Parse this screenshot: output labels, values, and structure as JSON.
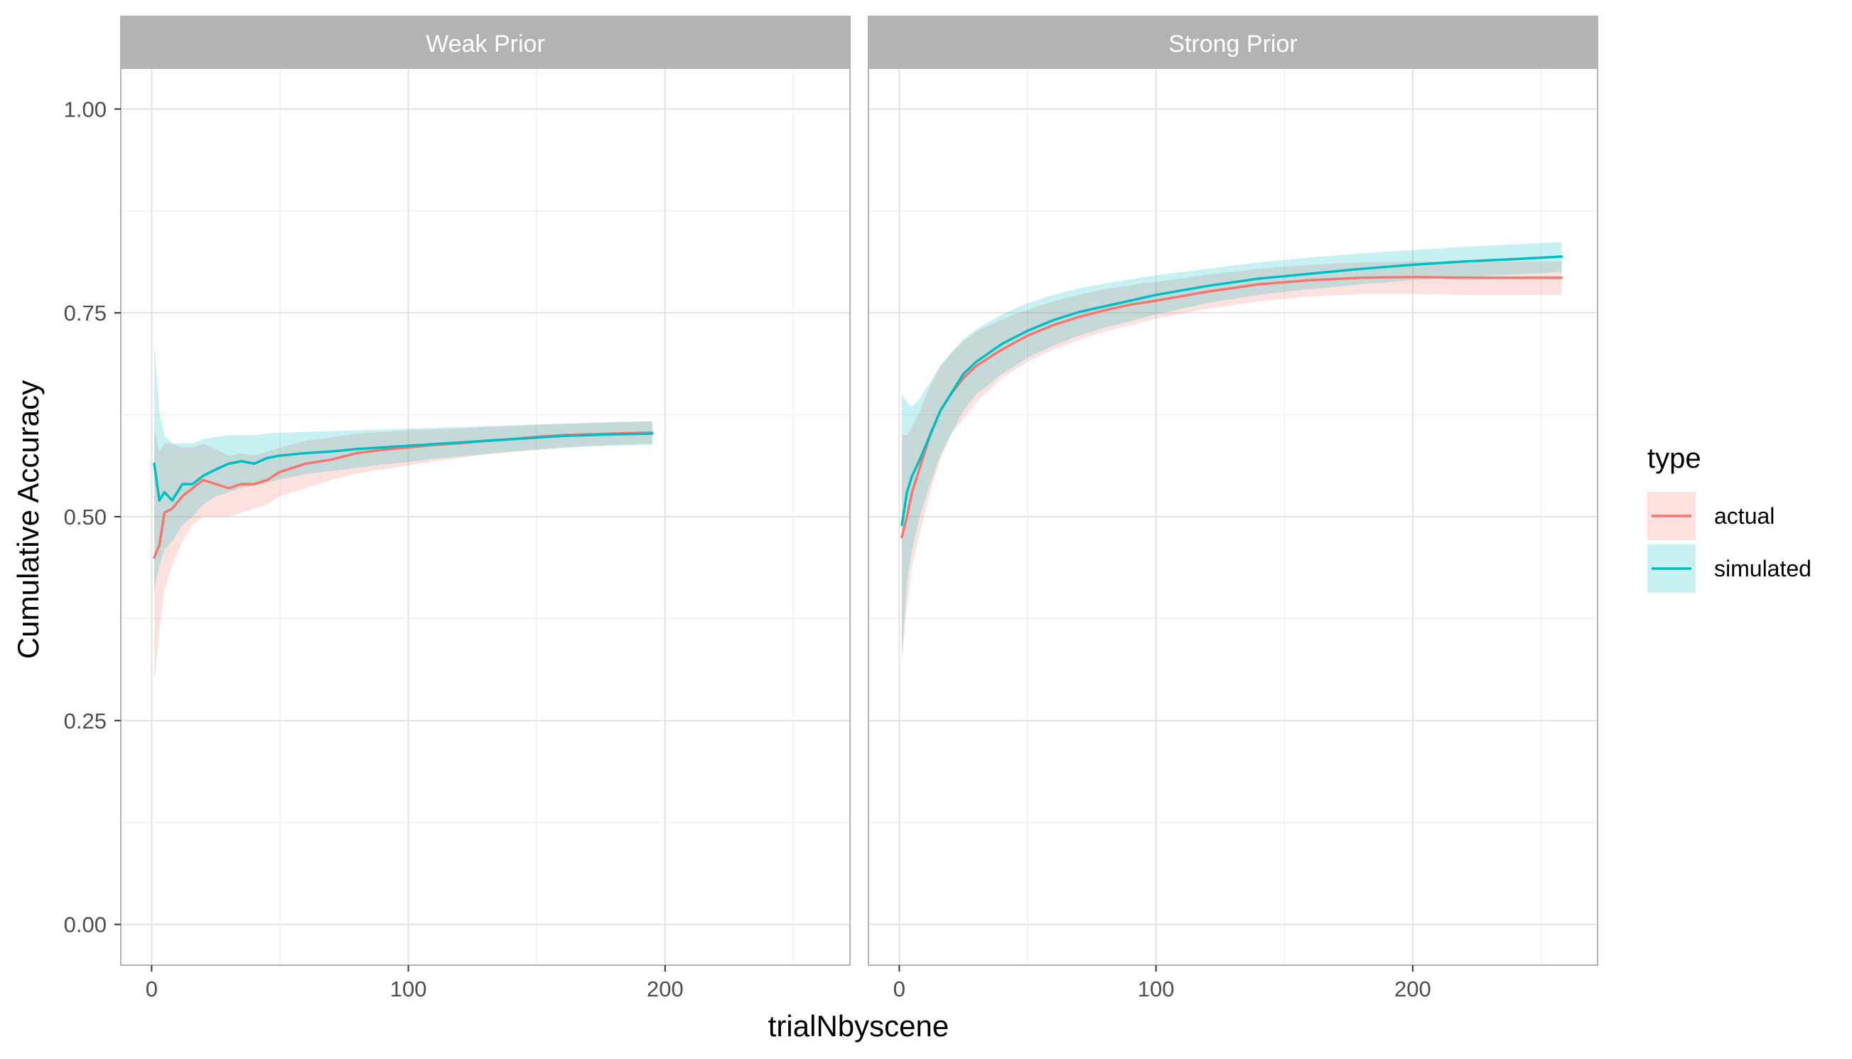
{
  "chart_data": {
    "type": "line",
    "xlabel": "trialNbyscene",
    "ylabel": "Cumulative Accuracy",
    "xlim": [
      -12,
      272
    ],
    "ylim": [
      -0.05,
      1.05
    ],
    "x_ticks": [
      0,
      100,
      200
    ],
    "y_ticks": [
      0,
      0.25,
      0.5,
      0.75,
      1.0
    ],
    "y_tick_labels": [
      "0.00",
      "0.25",
      "0.50",
      "0.75",
      "1.00"
    ],
    "grid": true,
    "legend": {
      "title": "type",
      "position": "right",
      "entries": [
        {
          "label": "actual",
          "color": "#F8766D"
        },
        {
          "label": "simulated",
          "color": "#00BFC4"
        }
      ]
    },
    "facets": [
      {
        "label": "Weak Prior",
        "series": [
          {
            "name": "actual",
            "color": "#F8766D",
            "x": [
              1,
              3,
              5,
              8,
              12,
              16,
              20,
              25,
              30,
              35,
              40,
              45,
              50,
              60,
              70,
              80,
              90,
              100,
              110,
              120,
              130,
              140,
              150,
              160,
              170,
              180,
              195
            ],
            "y": [
              0.45,
              0.465,
              0.505,
              0.51,
              0.525,
              0.535,
              0.545,
              0.54,
              0.535,
              0.54,
              0.54,
              0.545,
              0.555,
              0.565,
              0.57,
              0.578,
              0.582,
              0.585,
              0.588,
              0.59,
              0.593,
              0.595,
              0.598,
              0.6,
              0.601,
              0.602,
              0.603
            ],
            "lower": [
              0.295,
              0.36,
              0.41,
              0.44,
              0.47,
              0.49,
              0.5,
              0.5,
              0.5,
              0.505,
              0.51,
              0.515,
              0.525,
              0.535,
              0.545,
              0.553,
              0.558,
              0.563,
              0.568,
              0.572,
              0.576,
              0.579,
              0.582,
              0.585,
              0.587,
              0.588,
              0.59
            ],
            "upper": [
              0.61,
              0.58,
              0.59,
              0.59,
              0.585,
              0.585,
              0.59,
              0.583,
              0.575,
              0.578,
              0.575,
              0.58,
              0.585,
              0.593,
              0.597,
              0.602,
              0.604,
              0.606,
              0.607,
              0.608,
              0.61,
              0.611,
              0.613,
              0.614,
              0.615,
              0.616,
              0.617
            ]
          },
          {
            "name": "simulated",
            "color": "#00BFC4",
            "x": [
              1,
              3,
              5,
              8,
              12,
              16,
              20,
              25,
              30,
              35,
              40,
              45,
              50,
              60,
              70,
              80,
              90,
              100,
              110,
              120,
              130,
              140,
              150,
              160,
              170,
              180,
              195
            ],
            "y": [
              0.565,
              0.52,
              0.53,
              0.52,
              0.54,
              0.54,
              0.55,
              0.558,
              0.565,
              0.568,
              0.565,
              0.572,
              0.575,
              0.578,
              0.58,
              0.583,
              0.585,
              0.587,
              0.589,
              0.591,
              0.593,
              0.595,
              0.597,
              0.599,
              0.6,
              0.601,
              0.602
            ],
            "lower": [
              0.41,
              0.44,
              0.46,
              0.47,
              0.49,
              0.5,
              0.515,
              0.525,
              0.53,
              0.535,
              0.538,
              0.542,
              0.546,
              0.552,
              0.556,
              0.56,
              0.564,
              0.567,
              0.571,
              0.574,
              0.577,
              0.58,
              0.582,
              0.584,
              0.586,
              0.587,
              0.588
            ],
            "upper": [
              0.715,
              0.63,
              0.6,
              0.59,
              0.59,
              0.59,
              0.595,
              0.598,
              0.6,
              0.6,
              0.6,
              0.602,
              0.603,
              0.604,
              0.605,
              0.606,
              0.607,
              0.608,
              0.609,
              0.61,
              0.611,
              0.612,
              0.613,
              0.614,
              0.615,
              0.616,
              0.617
            ]
          }
        ]
      },
      {
        "label": "Strong Prior",
        "series": [
          {
            "name": "actual",
            "color": "#F8766D",
            "x": [
              1,
              3,
              5,
              8,
              12,
              16,
              20,
              25,
              30,
              40,
              50,
              60,
              70,
              80,
              90,
              100,
              120,
              140,
              160,
              180,
              200,
              220,
              240,
              258
            ],
            "y": [
              0.475,
              0.5,
              0.53,
              0.56,
              0.6,
              0.63,
              0.65,
              0.67,
              0.685,
              0.705,
              0.722,
              0.735,
              0.745,
              0.753,
              0.76,
              0.765,
              0.776,
              0.785,
              0.79,
              0.793,
              0.794,
              0.793,
              0.793,
              0.793
            ],
            "lower": [
              0.32,
              0.39,
              0.44,
              0.48,
              0.53,
              0.57,
              0.6,
              0.62,
              0.64,
              0.67,
              0.69,
              0.705,
              0.717,
              0.727,
              0.735,
              0.743,
              0.755,
              0.764,
              0.77,
              0.773,
              0.773,
              0.772,
              0.772,
              0.772
            ],
            "upper": [
              0.6,
              0.6,
              0.61,
              0.63,
              0.66,
              0.685,
              0.7,
              0.715,
              0.727,
              0.742,
              0.754,
              0.764,
              0.772,
              0.779,
              0.784,
              0.788,
              0.797,
              0.804,
              0.809,
              0.812,
              0.813,
              0.813,
              0.813,
              0.813
            ]
          },
          {
            "name": "simulated",
            "color": "#00BFC4",
            "x": [
              1,
              3,
              5,
              8,
              12,
              16,
              20,
              25,
              30,
              40,
              50,
              60,
              70,
              80,
              90,
              100,
              120,
              140,
              160,
              180,
              200,
              220,
              240,
              258
            ],
            "y": [
              0.49,
              0.53,
              0.55,
              0.57,
              0.6,
              0.63,
              0.65,
              0.675,
              0.69,
              0.712,
              0.728,
              0.741,
              0.751,
              0.758,
              0.765,
              0.772,
              0.783,
              0.792,
              0.798,
              0.804,
              0.809,
              0.813,
              0.816,
              0.819
            ],
            "lower": [
              0.33,
              0.42,
              0.46,
              0.5,
              0.54,
              0.575,
              0.6,
              0.63,
              0.65,
              0.675,
              0.695,
              0.71,
              0.722,
              0.732,
              0.74,
              0.748,
              0.762,
              0.772,
              0.779,
              0.785,
              0.79,
              0.794,
              0.797,
              0.8
            ],
            "upper": [
              0.65,
              0.64,
              0.635,
              0.645,
              0.665,
              0.685,
              0.7,
              0.718,
              0.73,
              0.748,
              0.762,
              0.772,
              0.78,
              0.786,
              0.791,
              0.796,
              0.804,
              0.812,
              0.818,
              0.823,
              0.827,
              0.831,
              0.834,
              0.837
            ]
          }
        ]
      }
    ]
  }
}
